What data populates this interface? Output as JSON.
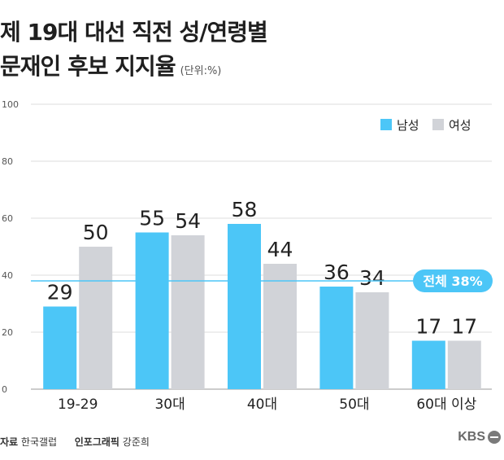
{
  "title_line1": "제 19대 대선 직전 성/연령별",
  "title_line2": "문재인 후보 지지율",
  "unit_label": "(단위:%)",
  "footer": {
    "source_label": "자료",
    "source_value": "한국갤럽",
    "graphic_label": "인포그래픽",
    "graphic_value": "강준희"
  },
  "logo_text": "KBS",
  "chart_data": {
    "type": "bar",
    "categories": [
      "19-29",
      "30대",
      "40대",
      "50대",
      "60대 이상"
    ],
    "series": [
      {
        "name": "남성",
        "values": [
          29,
          55,
          58,
          36,
          17
        ],
        "color": "#4cc6f7"
      },
      {
        "name": "여성",
        "values": [
          50,
          54,
          44,
          34,
          17
        ],
        "color": "#d1d3d8"
      }
    ],
    "ylim": [
      0,
      100
    ],
    "yticks": [
      0,
      20,
      40,
      60,
      80,
      100
    ],
    "grid": true,
    "legend_position": "top-right",
    "reference_line": {
      "value": 38,
      "label": "전체 38%",
      "color": "#4cc6f7"
    }
  }
}
